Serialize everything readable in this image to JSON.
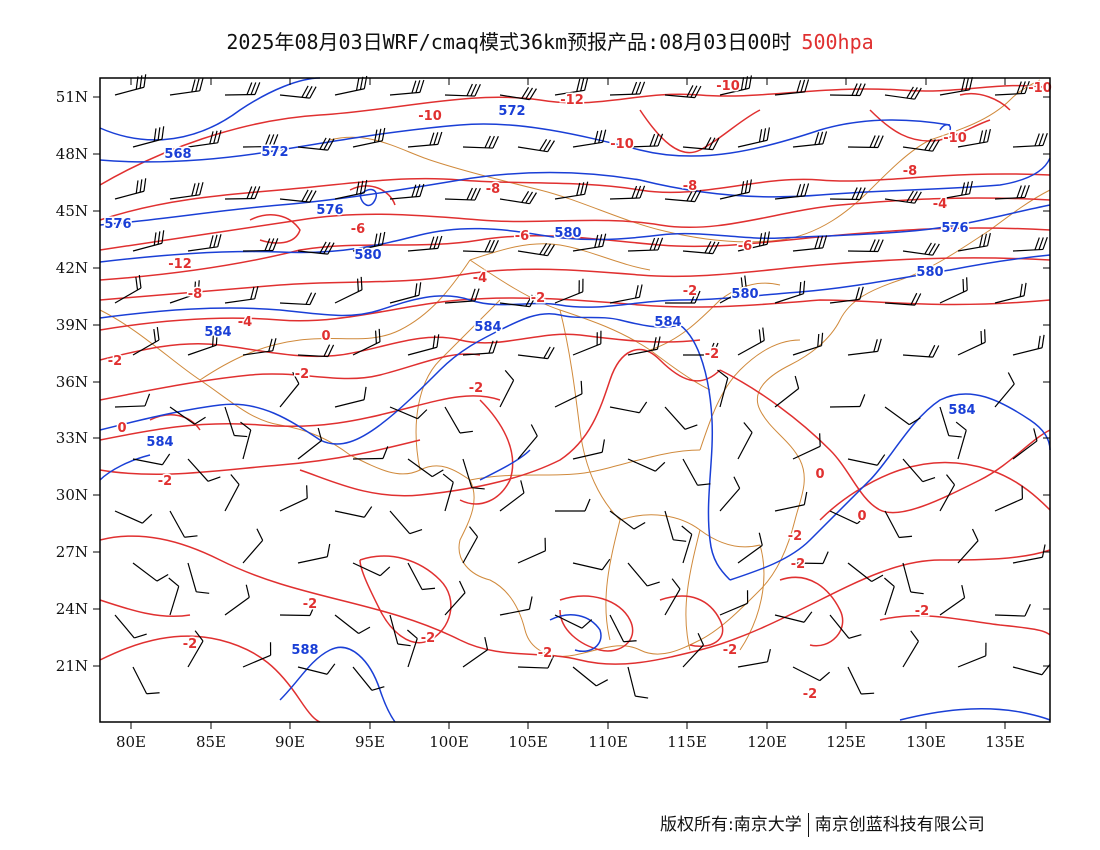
{
  "title": {
    "main": "2025年08月03日WRF/cmaq模式36km预报产品:08月03日00时",
    "level": "500hpa"
  },
  "colors": {
    "temperature": "#e03030",
    "geopotential": "#1a3fd6",
    "border": "#d08a3c",
    "wind": "#000000",
    "frame": "#000000"
  },
  "axes": {
    "lat_ticks": [
      "51N",
      "48N",
      "45N",
      "42N",
      "39N",
      "36N",
      "33N",
      "30N",
      "27N",
      "24N",
      "21N"
    ],
    "lon_ticks": [
      "80E",
      "85E",
      "90E",
      "95E",
      "100E",
      "105E",
      "110E",
      "115E",
      "120E",
      "125E",
      "130E",
      "135E"
    ]
  },
  "labels": {
    "temperature": [
      "-12",
      "-10",
      "-10",
      "-10",
      "-10",
      "-12",
      "-10",
      "-8",
      "-8",
      "-8",
      "-6",
      "-8",
      "-6",
      "-6",
      "-4",
      "-4",
      "-4",
      "-2",
      "-2",
      "-2",
      "-2",
      "-2",
      "0",
      "0",
      "0",
      "0",
      "-2",
      "-2",
      "-2",
      "-2",
      "-2",
      "-2",
      "-2",
      "-2",
      "-2",
      "-2",
      "-2"
    ],
    "geopotential": [
      "568",
      "572",
      "572",
      "576",
      "576",
      "576",
      "580",
      "580",
      "580",
      "580",
      "584",
      "584",
      "584",
      "584",
      "588",
      "584"
    ]
  },
  "footer": {
    "left": "版权所有:南京大学",
    "right": "南京创蓝科技有限公司"
  }
}
